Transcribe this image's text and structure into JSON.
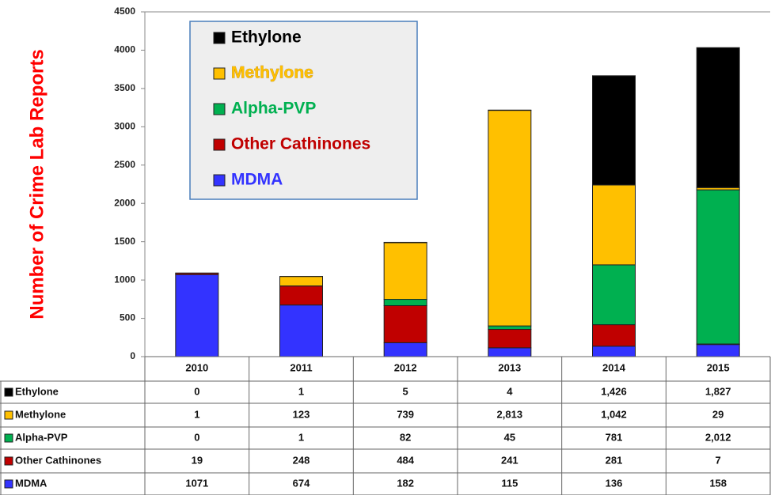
{
  "chart_data": {
    "type": "stacked_bar",
    "y_label": "Number of Crime Lab Reports",
    "categories": [
      "2010",
      "2011",
      "2012",
      "2013",
      "2014",
      "2015"
    ],
    "series": [
      {
        "name": "Ethylone",
        "color": "#000000",
        "values": [
          0,
          1,
          5,
          4,
          1426,
          1827
        ],
        "value_labels": [
          "0",
          "1",
          "5",
          "4",
          "1,426",
          "1,827"
        ]
      },
      {
        "name": "Methylone",
        "color": "#ffc000",
        "values": [
          1,
          123,
          739,
          2813,
          1042,
          29
        ],
        "value_labels": [
          "1",
          "123",
          "739",
          "2,813",
          "1,042",
          "29"
        ]
      },
      {
        "name": "Alpha-PVP",
        "color": "#00b050",
        "values": [
          0,
          1,
          82,
          45,
          781,
          2012
        ],
        "value_labels": [
          "0",
          "1",
          "82",
          "45",
          "781",
          "2,012"
        ]
      },
      {
        "name": "Other Cathinones",
        "color": "#c00000",
        "values": [
          19,
          248,
          484,
          241,
          281,
          7
        ],
        "value_labels": [
          "19",
          "248",
          "484",
          "241",
          "281",
          "7"
        ]
      },
      {
        "name": "MDMA",
        "color": "#3333ff",
        "values": [
          1071,
          674,
          182,
          115,
          136,
          158
        ],
        "value_labels": [
          "1071",
          "674",
          "182",
          "115",
          "136",
          "158"
        ]
      }
    ],
    "ylim": [
      0,
      4500
    ],
    "yticks": [
      0,
      500,
      1000,
      1500,
      2000,
      2500,
      3000,
      3500,
      4000,
      4500
    ],
    "grid": false
  }
}
